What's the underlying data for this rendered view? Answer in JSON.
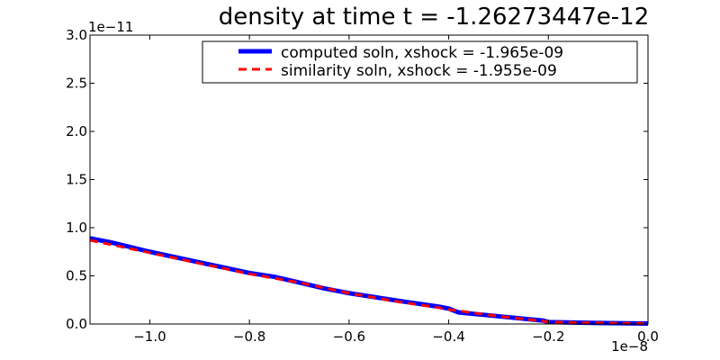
{
  "chart_data": {
    "type": "line",
    "title": "density at time t = -1.26273447e-12",
    "xlabel": "",
    "ylabel": "",
    "x_offset_label": "1e−8",
    "y_offset_label": "1e−11",
    "xlim": [
      -1.12,
      0.0
    ],
    "ylim": [
      0.0,
      3.0
    ],
    "x_ticks": [
      -1.0,
      -0.8,
      -0.6,
      -0.4,
      -0.2,
      0.0
    ],
    "x_tick_labels": [
      "−1.0",
      "−0.8",
      "−0.6",
      "−0.4",
      "−0.2",
      "0.0"
    ],
    "y_ticks": [
      0.0,
      0.5,
      1.0,
      1.5,
      2.0,
      2.5,
      3.0
    ],
    "y_tick_labels": [
      "0.0",
      "0.5",
      "1.0",
      "1.5",
      "2.0",
      "2.5",
      "3.0"
    ],
    "grid": false,
    "legend_position": "top-right",
    "series": [
      {
        "name": "computed soln, xshock = -1.965e-09",
        "color": "#0000ff",
        "style": "solid",
        "x": [
          -1.12,
          -1.08,
          -1.0,
          -0.9,
          -0.8,
          -0.75,
          -0.7,
          -0.65,
          -0.6,
          -0.5,
          -0.42,
          -0.4,
          -0.38,
          -0.3,
          -0.21,
          -0.2,
          -0.1,
          0.0
        ],
        "y": [
          0.89,
          0.85,
          0.75,
          0.64,
          0.53,
          0.49,
          0.43,
          0.37,
          0.32,
          0.24,
          0.18,
          0.16,
          0.12,
          0.08,
          0.035,
          0.02,
          0.01,
          0.005
        ]
      },
      {
        "name": "similarity soln,  xshock = -1.955e-09",
        "color": "#ff0000",
        "style": "dashed",
        "x": [
          -1.12,
          -1.0,
          -0.9,
          -0.8,
          -0.7,
          -0.6,
          -0.5,
          -0.42,
          -0.4,
          -0.3,
          -0.21,
          -0.2,
          -0.1,
          0.0
        ],
        "y": [
          0.87,
          0.74,
          0.63,
          0.52,
          0.43,
          0.32,
          0.23,
          0.17,
          0.15,
          0.08,
          0.03,
          0.02,
          0.01,
          0.005
        ]
      }
    ]
  }
}
